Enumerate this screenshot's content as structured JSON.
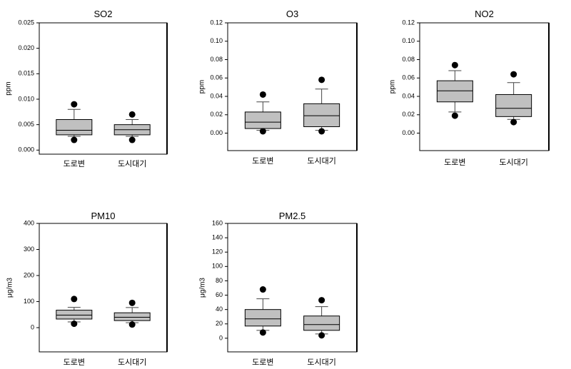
{
  "colors": {
    "background": "#ffffff",
    "box_fill": "#c0c0c0",
    "box_stroke": "#000000",
    "whisker": "#444444",
    "outlier": "#000000",
    "frame": "#000000"
  },
  "chart_data": [
    {
      "type": "box",
      "title": "SO2",
      "ylabel": "ppm",
      "ylim": [
        -0.0008,
        0.025
      ],
      "yticks": [
        "0.000",
        "0.005",
        "0.010",
        "0.015",
        "0.020",
        "0.025"
      ],
      "categories": [
        "도로변",
        "도시대기"
      ],
      "boxes": [
        {
          "whisker_low": 0.0027,
          "q1": 0.003,
          "median": 0.0039,
          "q3": 0.006,
          "whisker_high": 0.008,
          "outliers": [
            0.009,
            0.002
          ]
        },
        {
          "whisker_low": 0.0027,
          "q1": 0.003,
          "median": 0.004,
          "q3": 0.005,
          "whisker_high": 0.006,
          "outliers": [
            0.007,
            0.002
          ]
        }
      ]
    },
    {
      "type": "box",
      "title": "O3",
      "ylabel": "ppm",
      "ylim": [
        -0.019,
        0.12
      ],
      "yticks": [
        "0.00",
        "0.02",
        "0.04",
        "0.06",
        "0.08",
        "0.10",
        "0.12"
      ],
      "categories": [
        "도로변",
        "도시대기"
      ],
      "boxes": [
        {
          "whisker_low": 0.003,
          "q1": 0.005,
          "median": 0.012,
          "q3": 0.023,
          "whisker_high": 0.034,
          "outliers": [
            0.042,
            0.002
          ]
        },
        {
          "whisker_low": 0.003,
          "q1": 0.007,
          "median": 0.019,
          "q3": 0.032,
          "whisker_high": 0.048,
          "outliers": [
            0.058,
            0.002
          ]
        }
      ]
    },
    {
      "type": "box",
      "title": "NO2",
      "ylabel": "ppm",
      "ylim": [
        -0.019,
        0.12
      ],
      "yticks": [
        "0.00",
        "0.02",
        "0.04",
        "0.06",
        "0.08",
        "0.10",
        "0.12"
      ],
      "categories": [
        "도로변",
        "도시대기"
      ],
      "boxes": [
        {
          "whisker_low": 0.023,
          "q1": 0.034,
          "median": 0.046,
          "q3": 0.057,
          "whisker_high": 0.068,
          "outliers": [
            0.074,
            0.019
          ]
        },
        {
          "whisker_low": 0.015,
          "q1": 0.018,
          "median": 0.027,
          "q3": 0.042,
          "whisker_high": 0.055,
          "outliers": [
            0.064,
            0.012
          ]
        }
      ]
    },
    {
      "type": "box",
      "title": "PM10",
      "ylabel": "μg/m3",
      "ylim": [
        -93,
        400
      ],
      "yticks": [
        "0",
        "100",
        "200",
        "300",
        "400"
      ],
      "categories": [
        "도로변",
        "도시대기"
      ],
      "boxes": [
        {
          "whisker_low": 22,
          "q1": 33,
          "median": 48,
          "q3": 67,
          "whisker_high": 78,
          "outliers": [
            110,
            15
          ]
        },
        {
          "whisker_low": 19,
          "q1": 27,
          "median": 40,
          "q3": 57,
          "whisker_high": 77,
          "outliers": [
            95,
            12
          ]
        }
      ]
    },
    {
      "type": "box",
      "title": "PM2.5",
      "ylabel": "μg/m3",
      "ylim": [
        -19,
        160
      ],
      "yticks": [
        "0",
        "20",
        "40",
        "60",
        "80",
        "100",
        "120",
        "140",
        "160"
      ],
      "categories": [
        "도로변",
        "도시대기"
      ],
      "boxes": [
        {
          "whisker_low": 11,
          "q1": 17,
          "median": 27,
          "q3": 40,
          "whisker_high": 55,
          "outliers": [
            68,
            8
          ]
        },
        {
          "whisker_low": 6,
          "q1": 11,
          "median": 19,
          "q3": 31,
          "whisker_high": 44,
          "outliers": [
            53,
            4
          ]
        }
      ]
    }
  ]
}
